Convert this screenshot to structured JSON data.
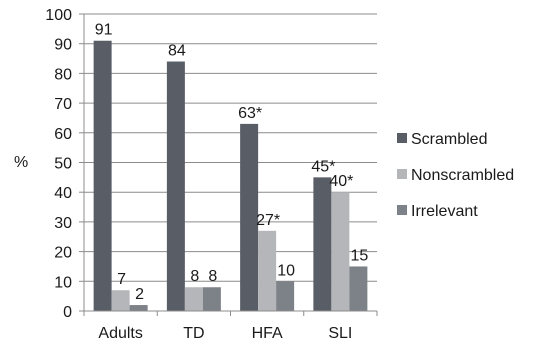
{
  "chart_data": {
    "type": "bar",
    "ylabel": "%",
    "ylim": [
      0,
      100
    ],
    "yticks": [
      0,
      10,
      20,
      30,
      40,
      50,
      60,
      70,
      80,
      90,
      100
    ],
    "categories": [
      "Adults",
      "TD",
      "HFA",
      "SLI"
    ],
    "series": [
      {
        "name": "Scrambled",
        "values": [
          91,
          84,
          63,
          45
        ],
        "labels": [
          "91",
          "84",
          "63*",
          "45*"
        ],
        "color": "#595e66"
      },
      {
        "name": "Nonscrambled",
        "values": [
          7,
          8,
          27,
          40
        ],
        "labels": [
          "7",
          "8",
          "27*",
          "40*"
        ],
        "color": "#b4b6ba"
      },
      {
        "name": "Irrelevant",
        "values": [
          2,
          8,
          10,
          15
        ],
        "labels": [
          "2",
          "8",
          "10",
          "15"
        ],
        "color": "#7d8188"
      }
    ],
    "grid": true,
    "legend": "right"
  }
}
